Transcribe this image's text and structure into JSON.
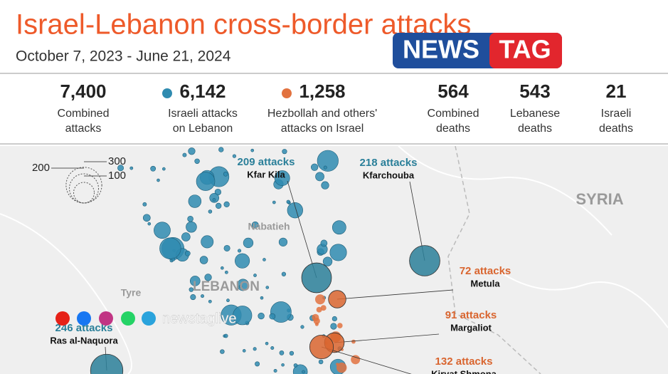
{
  "header": {
    "title": "Israel-Lebanon cross-border attacks",
    "subtitle": "October 7, 2023 - June 21, 2024"
  },
  "logo": {
    "left": "NEWS",
    "right": "TAG"
  },
  "stats": [
    {
      "value": "7,400",
      "lines": [
        "Combined",
        "attacks"
      ]
    },
    {
      "value": "6,142",
      "lines": [
        "Israeli attacks",
        "on Lebanon"
      ],
      "marker_color": "#2f8bb0"
    },
    {
      "value": "1,258",
      "lines": [
        "Hezbollah and others'",
        "attacks on Israel"
      ],
      "marker_color": "#e2723f"
    },
    {
      "value": "564",
      "lines": [
        "Combined",
        "deaths"
      ]
    },
    {
      "value": "543",
      "lines": [
        "Lebanese",
        "deaths"
      ]
    },
    {
      "value": "21",
      "lines": [
        "Israeli",
        "deaths"
      ]
    }
  ],
  "size_legend": [
    200,
    300,
    100
  ],
  "places": [
    "SYRIA",
    "LEBANON",
    "Nabatieh",
    "Tyre"
  ],
  "annotations": [
    {
      "attacks": 209,
      "label": "209 attacks",
      "place": "Kfar Kila",
      "color": "#2a7f99"
    },
    {
      "attacks": 218,
      "label": "218 attacks",
      "place": "Kfarchouba",
      "color": "#2a7f99"
    },
    {
      "attacks": 72,
      "label": "72 attacks",
      "place": "Metula",
      "color": "#d9652f"
    },
    {
      "attacks": 91,
      "label": "91 attacks",
      "place": "Margaliot",
      "color": "#d9652f"
    },
    {
      "attacks": 132,
      "label": "132 attacks",
      "place": "Kiryat Shmona",
      "color": "#d9652f"
    },
    {
      "attacks": 246,
      "label": "246 attacks",
      "place": "Ras al-Naquora",
      "color": "#2a7f99"
    }
  ],
  "watermark": "newstaglive"
}
